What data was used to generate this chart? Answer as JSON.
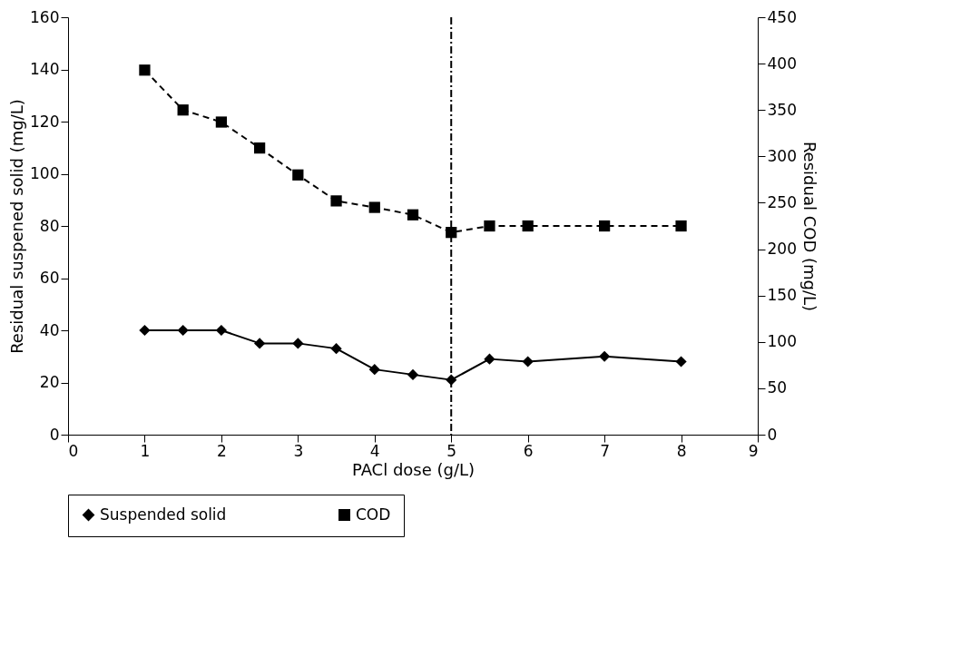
{
  "chart_data": {
    "type": "line",
    "xlabel": "PACl dose (g/L)",
    "ylabel": "Residual suspened solid (mg/L)",
    "y2label": "Residual COD (mg/L)",
    "x": [
      1,
      1.5,
      2,
      2.5,
      3,
      3.5,
      4,
      4.5,
      5,
      5.5,
      6,
      7,
      8
    ],
    "series": [
      {
        "name": "Suspended solid",
        "color": "#000000",
        "marker": "diamond",
        "line_style": "solid",
        "values": [
          40,
          40,
          40,
          35,
          35,
          33,
          25,
          23,
          21,
          29,
          28,
          30,
          28
        ]
      },
      {
        "name": "COD",
        "color": "#000000",
        "marker": "square",
        "line_style": "dashed",
        "axis": "y2",
        "values": [
          393,
          350,
          337,
          309,
          280,
          252,
          245,
          237,
          218,
          225,
          225,
          225,
          225
        ]
      }
    ],
    "xlim": [
      0,
      9
    ],
    "xticks": [
      0,
      1,
      2,
      3,
      4,
      5,
      6,
      7,
      8,
      9
    ],
    "ylim": [
      0,
      160
    ],
    "yticks": [
      0,
      20,
      40,
      60,
      80,
      100,
      120,
      140,
      160
    ],
    "y2lim": [
      0,
      450
    ],
    "y2ticks": [
      0,
      50,
      100,
      150,
      200,
      250,
      300,
      350,
      400,
      450
    ],
    "ref_lines": [
      {
        "axis": "x",
        "value": 5,
        "color": "#000000",
        "line_style": "dashdot"
      }
    ],
    "grid": false,
    "legend": "bottom"
  }
}
